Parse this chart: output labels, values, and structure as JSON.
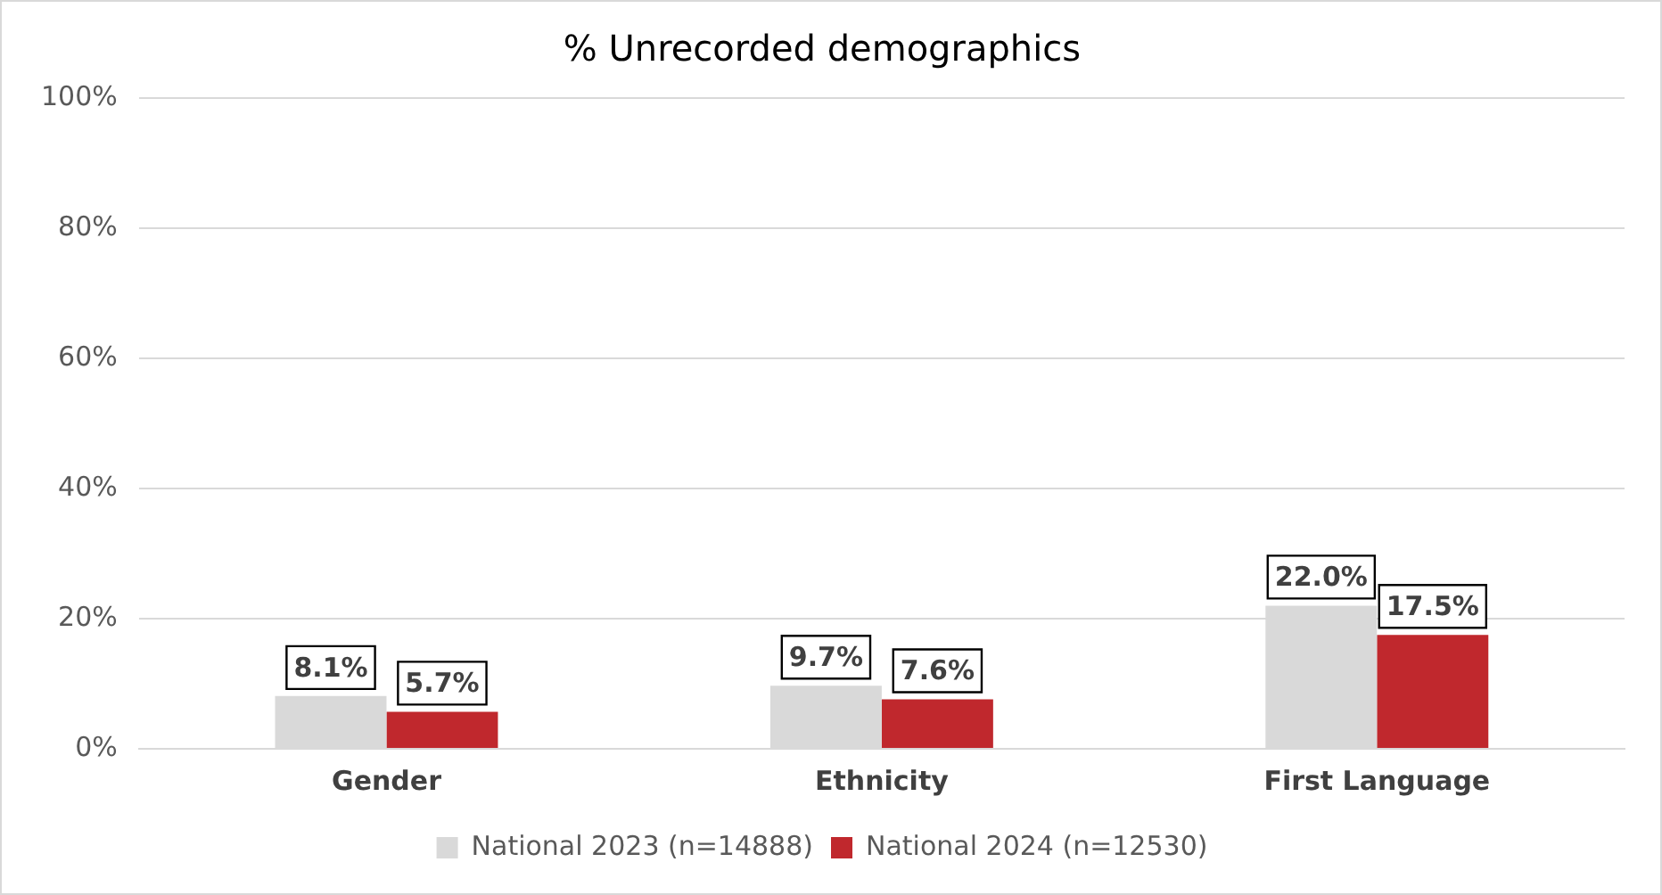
{
  "chart_data": {
    "type": "bar",
    "title": "% Unrecorded demographics",
    "categories": [
      "Gender",
      "Ethnicity",
      "First Language"
    ],
    "series": [
      {
        "name": "National 2023 (n=14888)",
        "color": "#d9d9d9",
        "values": [
          8.1,
          9.7,
          22.0
        ],
        "value_labels": [
          "8.1%",
          "9.7%",
          "22.0%"
        ]
      },
      {
        "name": "National 2024 (n=12530)",
        "color": "#c0282d",
        "values": [
          5.7,
          7.6,
          17.5
        ],
        "value_labels": [
          "5.7%",
          "7.6%",
          "17.5%"
        ]
      }
    ],
    "ylim": [
      0,
      100
    ],
    "yticks": [
      {
        "value": 0,
        "label": "0%"
      },
      {
        "value": 20,
        "label": "20%"
      },
      {
        "value": 40,
        "label": "40%"
      },
      {
        "value": 60,
        "label": "60%"
      },
      {
        "value": 80,
        "label": "80%"
      },
      {
        "value": 100,
        "label": "100%"
      }
    ],
    "grid": "y",
    "legend": "bottom"
  }
}
